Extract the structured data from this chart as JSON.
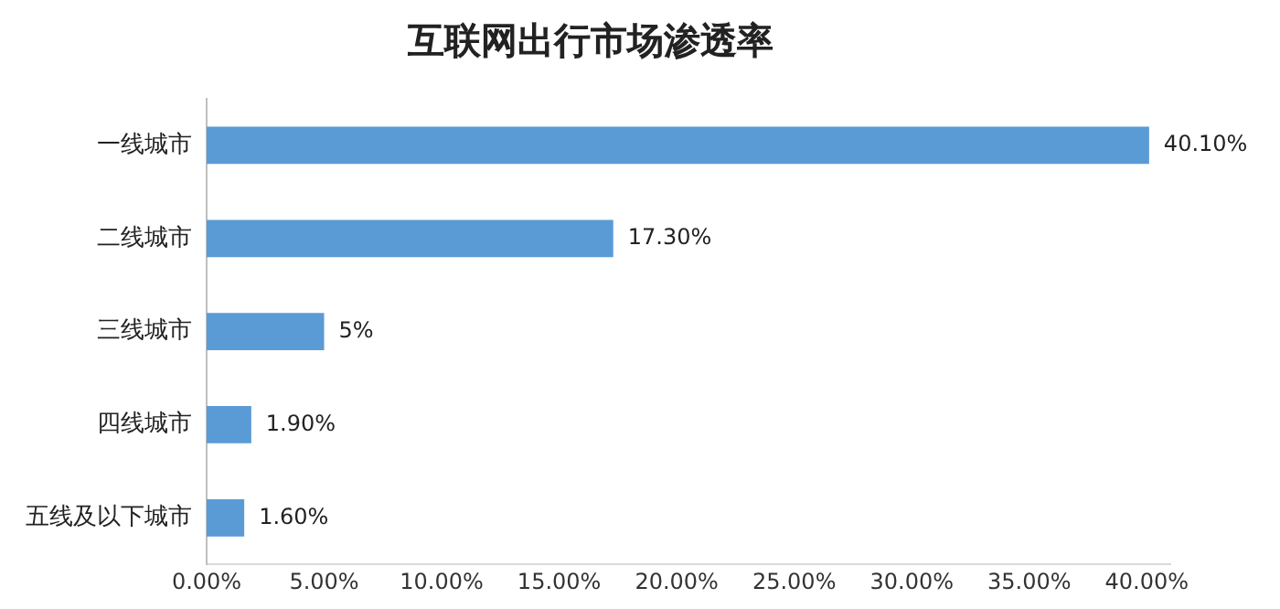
{
  "chart_data": {
    "type": "bar",
    "orientation": "horizontal",
    "title": "互联网出行市场渗透率",
    "categories": [
      "一线城市",
      "二线城市",
      "三线城市",
      "四线城市",
      "五线及以下城市"
    ],
    "values": [
      40.1,
      17.3,
      5,
      1.9,
      1.6
    ],
    "value_labels": [
      "40.10%",
      "17.30%",
      "5%",
      "1.90%",
      "1.60%"
    ],
    "color": "#5b9bd5",
    "xlim": [
      0,
      41
    ],
    "xticks": [
      {
        "value": 0,
        "label": "0.00%"
      },
      {
        "value": 5,
        "label": "5.00%"
      },
      {
        "value": 10,
        "label": "10.00%"
      },
      {
        "value": 15,
        "label": "15.00%"
      },
      {
        "value": 20,
        "label": "20.00%"
      },
      {
        "value": 25,
        "label": "25.00%"
      },
      {
        "value": 30,
        "label": "30.00%"
      },
      {
        "value": 35,
        "label": "35.00%"
      },
      {
        "value": 40,
        "label": "40.00%"
      }
    ],
    "grid": false,
    "legend": false
  }
}
